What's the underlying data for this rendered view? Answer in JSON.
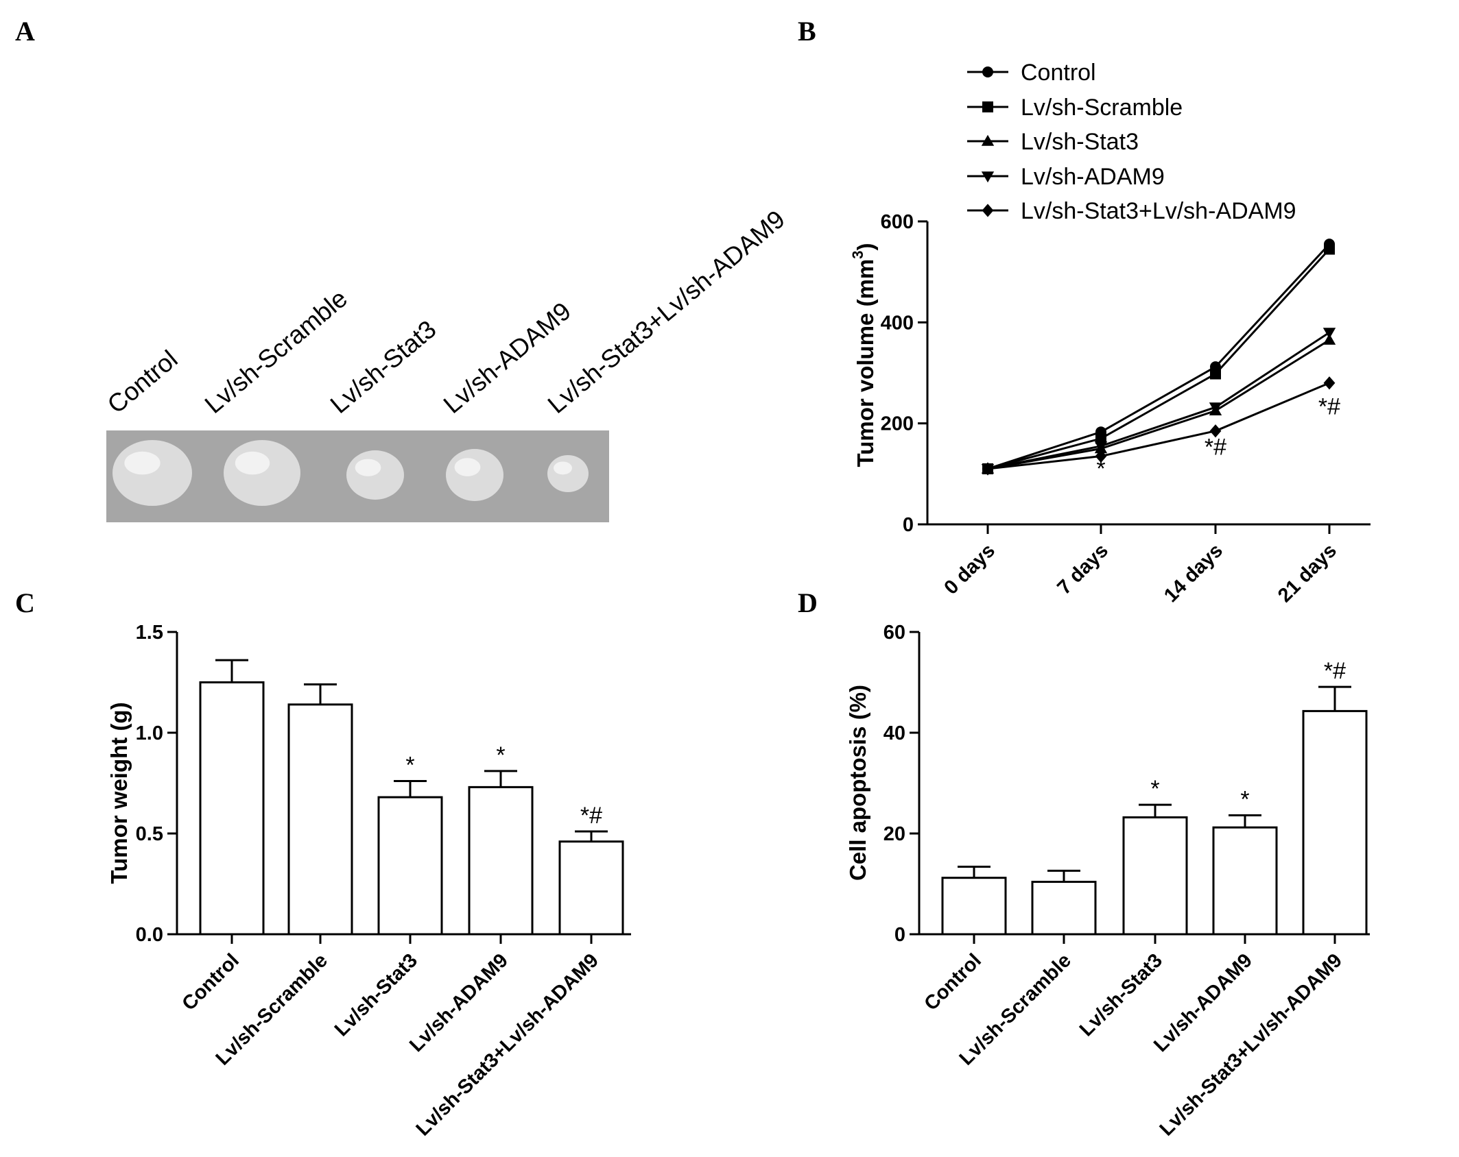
{
  "panels": {
    "a": {
      "letter": "A"
    },
    "b": {
      "letter": "B"
    },
    "c": {
      "letter": "C"
    },
    "d": {
      "letter": "D"
    }
  },
  "photo": {
    "labels": [
      "Control",
      "Lv/sh-Scramble",
      "Lv/sh-Stat3",
      "Lv/sh-ADAM9",
      "Lv/sh-Stat3+Lv/sh-ADAM9"
    ],
    "background": "#a6a6a6"
  },
  "chart_data": [
    {
      "type": "line",
      "panel": "B",
      "ylabel": "Tumor volume (mm",
      "ylabel_sup": "3",
      "ylabel_close": ")",
      "ylim": [
        0,
        600
      ],
      "yticks": [
        "0",
        "200",
        "400",
        "600"
      ],
      "ytick_values": [
        0,
        200,
        400,
        600
      ],
      "categories": [
        "0 days",
        "7 days",
        "14 days",
        "21 days"
      ],
      "series": [
        {
          "name": "Control",
          "marker": "circle",
          "values": [
            110,
            183,
            312,
            555
          ]
        },
        {
          "name": "Lv/sh-Scramble",
          "marker": "square",
          "values": [
            110,
            170,
            298,
            545
          ]
        },
        {
          "name": "Lv/sh-Stat3",
          "marker": "triangle-up",
          "values": [
            110,
            150,
            225,
            365
          ]
        },
        {
          "name": "Lv/sh-ADAM9",
          "marker": "triangle-down",
          "values": [
            110,
            155,
            232,
            380
          ]
        },
        {
          "name": "Lv/sh-Stat3+Lv/sh-ADAM9",
          "marker": "diamond",
          "values": [
            110,
            135,
            185,
            280
          ]
        }
      ],
      "annotations": [
        {
          "category": "7 days",
          "text": "*",
          "value": 95
        },
        {
          "category": "14 days",
          "text": "*#",
          "value": 138
        },
        {
          "category": "21 days",
          "text": "*#",
          "value": 218
        }
      ],
      "legend_position": "top-left"
    },
    {
      "type": "bar",
      "panel": "C",
      "ylabel": "Tumor weight (g)",
      "ylim": [
        0,
        1.5
      ],
      "yticks": [
        "0.0",
        "0.5",
        "1.0",
        "1.5"
      ],
      "ytick_values": [
        0,
        0.5,
        1.0,
        1.5
      ],
      "categories": [
        "Control",
        "Lv/sh-Scramble",
        "Lv/sh-Stat3",
        "Lv/sh-ADAM9",
        "Lv/sh-Stat3+Lv/sh-ADAM9"
      ],
      "values": [
        1.25,
        1.14,
        0.68,
        0.73,
        0.46
      ],
      "errors": [
        0.11,
        0.1,
        0.08,
        0.08,
        0.05
      ],
      "annotations": [
        "",
        "",
        "*",
        "*",
        "*#"
      ]
    },
    {
      "type": "bar",
      "panel": "D",
      "ylabel": "Cell apoptosis (%)",
      "ylim": [
        0,
        60
      ],
      "yticks": [
        "0",
        "20",
        "40",
        "60"
      ],
      "ytick_values": [
        0,
        20,
        40,
        60
      ],
      "categories": [
        "Control",
        "Lv/sh-Scramble",
        "Lv/sh-Stat3",
        "Lv/sh-ADAM9",
        "Lv/sh-Stat3+Lv/sh-ADAM9"
      ],
      "values": [
        11.2,
        10.4,
        23.2,
        21.2,
        44.3
      ],
      "errors": [
        2.2,
        2.2,
        2.5,
        2.4,
        4.8
      ],
      "annotations": [
        "",
        "",
        "*",
        "*",
        "*#"
      ]
    }
  ]
}
